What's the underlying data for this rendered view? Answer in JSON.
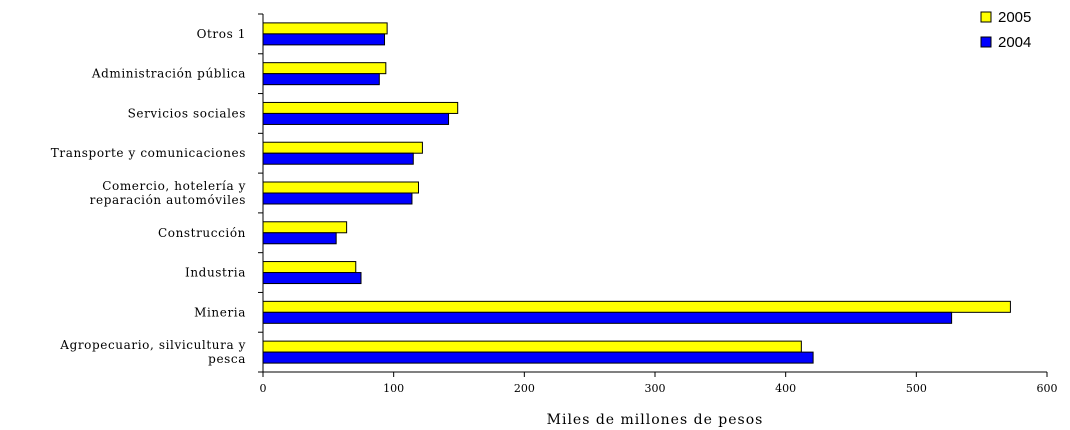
{
  "chart_data": {
    "type": "bar",
    "orientation": "horizontal",
    "xlabel": "Miles de millones de pesos",
    "xlim": [
      0,
      600
    ],
    "xticks": [
      0,
      100,
      200,
      300,
      400,
      500,
      600
    ],
    "legend_position": "top-right",
    "grid": false,
    "categories": [
      [
        "Otros 1"
      ],
      [
        "Administración pública"
      ],
      [
        "Servicios sociales"
      ],
      [
        "Transporte y comunicaciones"
      ],
      [
        "Comercio, hotelería y",
        "reparación automóviles"
      ],
      [
        "Construcción"
      ],
      [
        "Industria"
      ],
      [
        "Mineria"
      ],
      [
        "Agropecuario, silvicultura y",
        "pesca"
      ]
    ],
    "series": [
      {
        "name": "2005",
        "color": "#ffff00",
        "values": [
          95,
          94,
          149,
          122,
          119,
          64,
          71,
          572,
          412
        ]
      },
      {
        "name": "2004",
        "color": "#0000ff",
        "values": [
          93,
          89,
          142,
          115,
          114,
          56,
          75,
          527,
          421
        ]
      }
    ]
  }
}
